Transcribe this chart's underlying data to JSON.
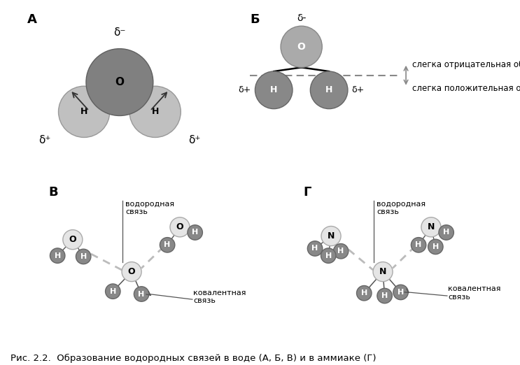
{
  "bg_color": "#ffffff",
  "label_A": "А",
  "label_B": "Б",
  "label_V": "В",
  "label_G": "Г",
  "caption": "Рис. 2.2.  Образование водородных связей в воде (А, Б, В) и в аммиаке (Г)",
  "caption_fontsize": 9.5,
  "panel_label_fontsize": 13,
  "O_light_color": "#e8e8e8",
  "O_medium_color": "#aaaaaa",
  "O_dark_color": "#7a7a7a",
  "H_dark_color": "#888888",
  "H_medium_color": "#b0b0b0",
  "panel_B": {
    "text_neg": "слегка отрицательная область",
    "text_pos": "слегка положительная область"
  },
  "panel_V": {
    "text_hbond": "водородная\nсвязь",
    "text_cbond": "ковалентная\nсвязь"
  },
  "panel_G": {
    "text_hbond": "водородная\nсвязь",
    "text_cbond": "ковалентная\nсвязь"
  }
}
